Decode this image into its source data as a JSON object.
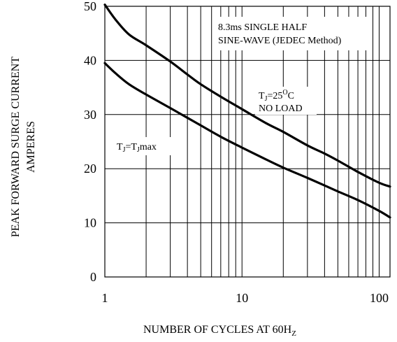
{
  "chart_data": {
    "type": "line",
    "x_scale": "log",
    "xlim": [
      1,
      120
    ],
    "ylim": [
      0,
      50
    ],
    "grid": true,
    "x_ticks": [
      1,
      10,
      100
    ],
    "x_tick_labels": [
      "1",
      "10",
      "100"
    ],
    "y_ticks": [
      0,
      10,
      20,
      30,
      40,
      50
    ],
    "y_tick_labels": [
      "0",
      "10",
      "20",
      "30",
      "40",
      "50"
    ],
    "xlabel": {
      "main": "NUMBER OF CYCLES AT 60H",
      "sub": "Z"
    },
    "ylabel_lines": [
      "PEAK FORWARD SURGE CURRENT",
      "AMPERES"
    ],
    "annotations": {
      "method": [
        "8.3ms SINGLE HALF",
        "SINE-WAVE (JEDEC Method)"
      ],
      "upper_curve": {
        "t": "T",
        "sub": "J",
        "eq": "=25",
        "sup": "O",
        "unit": "C",
        "line2": "NO LOAD"
      },
      "lower_curve": {
        "t": "T",
        "sub1": "J",
        "eq": "=T",
        "sub2": "J",
        "rest": "max"
      }
    },
    "series": [
      {
        "x": [
          1,
          1.2,
          1.5,
          2,
          3,
          4,
          5,
          7,
          10,
          15,
          20,
          30,
          40,
          50,
          70,
          100,
          120
        ],
        "values": [
          50.3,
          47.5,
          44.8,
          42.8,
          39.8,
          37.4,
          35.6,
          33.3,
          31.0,
          28.4,
          26.8,
          24.3,
          22.8,
          21.5,
          19.4,
          17.4,
          16.7
        ]
      },
      {
        "x": [
          1,
          1.2,
          1.5,
          2,
          3,
          4,
          5,
          7,
          10,
          15,
          20,
          30,
          40,
          50,
          70,
          100,
          120
        ],
        "values": [
          39.5,
          37.6,
          35.6,
          33.7,
          31.2,
          29.4,
          28.0,
          25.9,
          23.9,
          21.7,
          20.2,
          18.3,
          16.9,
          15.8,
          14.2,
          12.2,
          11.0
        ]
      }
    ]
  }
}
